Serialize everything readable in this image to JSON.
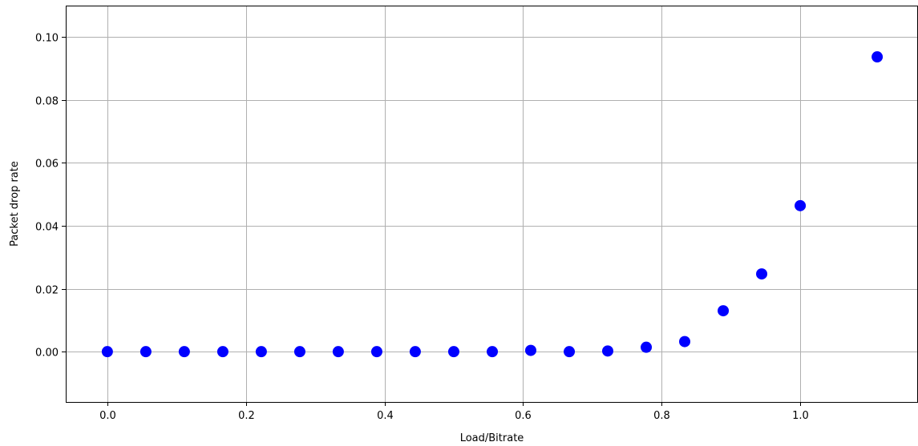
{
  "chart_data": {
    "type": "scatter",
    "title": "",
    "xlabel": "Load/Bitrate",
    "ylabel": "Packet drop rate",
    "xlim": [
      -0.06,
      1.17
    ],
    "ylim": [
      -0.016,
      0.11
    ],
    "grid": true,
    "marker_color": "#0000ff",
    "xticks": [
      0.0,
      0.2,
      0.4,
      0.6,
      0.8,
      1.0
    ],
    "xtick_labels": [
      "0.0",
      "0.2",
      "0.4",
      "0.6",
      "0.8",
      "1.0"
    ],
    "yticks": [
      0.0,
      0.02,
      0.04,
      0.06,
      0.08,
      0.1
    ],
    "ytick_labels": [
      "0.00",
      "0.02",
      "0.04",
      "0.06",
      "0.08",
      "0.10"
    ],
    "series": [
      {
        "x": [
          0.0,
          0.0556,
          0.1111,
          0.1667,
          0.2222,
          0.2778,
          0.3333,
          0.3889,
          0.4444,
          0.5,
          0.5556,
          0.6111,
          0.6667,
          0.7222,
          0.7778,
          0.8333,
          0.8889,
          0.9444,
          1.0,
          1.1111
        ],
        "y": [
          0.0,
          0.0,
          0.0,
          0.0,
          0.0,
          0.0,
          0.0,
          0.0,
          0.0,
          0.0,
          0.0,
          0.0004,
          0.0,
          0.0002,
          0.0014,
          0.0032,
          0.013,
          0.0247,
          0.0464,
          0.0937
        ]
      }
    ]
  }
}
